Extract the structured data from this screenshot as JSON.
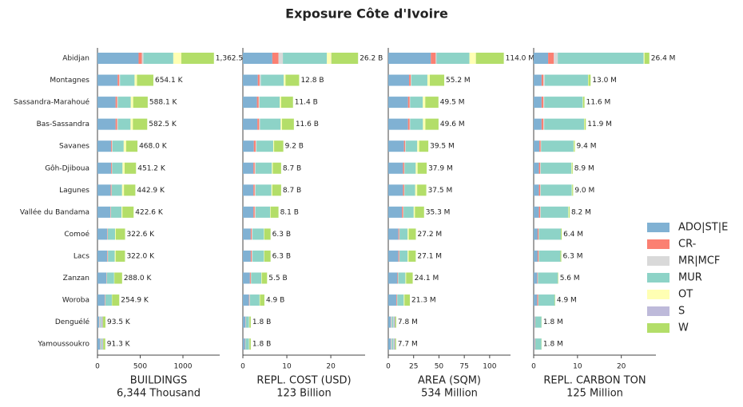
{
  "title": "Exposure Côte d'Ivoire",
  "chart_data": [
    {
      "type": "bar",
      "orientation": "horizontal",
      "categories": [
        "Abidjan",
        "Montagnes",
        "Sassandra-Marahoué",
        "Bas-Sassandra",
        "Savanes",
        "Gôh-Djiboua",
        "Lagunes",
        "Vallée du Bandama",
        "Comoé",
        "Lacs",
        "Zanzan",
        "Woroba",
        "Denguélé",
        "Yamoussoukro"
      ],
      "xlabel": "BUILDINGS",
      "subtitle": "6,344 Thousand",
      "xlim": [
        0,
        1430
      ],
      "xticks": [
        0,
        500,
        1000
      ],
      "series": [
        {
          "name": "ADO|ST|E",
          "color": "#80b1d3",
          "values": [
            481,
            236,
            212,
            212,
            160,
            160,
            155,
            151,
            113,
            113,
            104,
            85,
            20,
            30
          ]
        },
        {
          "name": "CR-",
          "color": "#fb8072",
          "values": [
            38,
            19,
            18,
            18,
            10,
            8,
            8,
            4,
            4,
            6,
            3,
            4,
            2,
            3
          ]
        },
        {
          "name": "MR|MCF",
          "color": "#d9d9d9",
          "values": [
            19,
            9,
            9,
            9,
            5,
            5,
            5,
            4,
            4,
            4,
            3,
            4,
            8,
            5
          ]
        },
        {
          "name": "MUR",
          "color": "#8dd3c7",
          "values": [
            349,
            170,
            151,
            148,
            132,
            120,
            120,
            123,
            85,
            80,
            85,
            75,
            10,
            12
          ]
        },
        {
          "name": "OT",
          "color": "#ffffb3",
          "values": [
            94,
            28,
            28,
            27,
            28,
            25,
            22,
            10,
            8,
            10,
            3,
            3,
            2,
            2
          ]
        },
        {
          "name": "S",
          "color": "#bebada",
          "values": [
            0.5,
            0,
            0,
            0,
            0,
            0,
            0,
            0,
            0,
            0,
            0,
            0,
            20,
            15
          ]
        },
        {
          "name": "W",
          "color": "#b3de69",
          "values": [
            381,
            192,
            170,
            168,
            133,
            133,
            133,
            131,
            109,
            109,
            90,
            84,
            31.5,
            24.3
          ]
        }
      ],
      "value_labels": [
        "1,362.5",
        "654.1 K",
        "588.1 K",
        "582.5 K",
        "468.0 K",
        "451.2 K",
        "442.9 K",
        "422.6 K",
        "322.6 K",
        "322.0 K",
        "288.0 K",
        "254.9 K",
        "93.5 K",
        "91.3 K"
      ]
    },
    {
      "type": "bar",
      "orientation": "horizontal",
      "xlabel": "REPL. COST (USD)",
      "subtitle": "123 Billion",
      "xlim": [
        0,
        27.8
      ],
      "xticks": [
        0,
        10,
        20
      ],
      "series": [
        {
          "color": "#80b1d3",
          "values": [
            6.7,
            3.4,
            3.2,
            3.3,
            2.5,
            2.4,
            2.4,
            2.4,
            1.8,
            1.8,
            1.6,
            1.4,
            0.6,
            0.5
          ]
        },
        {
          "color": "#fb8072",
          "values": [
            1.4,
            0.4,
            0.4,
            0.4,
            0.4,
            0.3,
            0.3,
            0.3,
            0.2,
            0.2,
            0.2,
            0.1,
            0.05,
            0.05
          ]
        },
        {
          "color": "#d9d9d9",
          "values": [
            1.0,
            0.3,
            0.2,
            0.2,
            0.2,
            0.2,
            0.2,
            0.2,
            0.2,
            0.2,
            0.1,
            0.1,
            0.05,
            0.05
          ]
        },
        {
          "color": "#8dd3c7",
          "values": [
            10.0,
            5.2,
            4.6,
            4.7,
            3.8,
            3.7,
            3.6,
            3.3,
            2.6,
            2.6,
            2.3,
            2.2,
            0.7,
            0.8
          ]
        },
        {
          "color": "#ffffb3",
          "values": [
            1.0,
            0.4,
            0.3,
            0.3,
            0.2,
            0.2,
            0.2,
            0.1,
            0.1,
            0.1,
            0.1,
            0.1,
            0.05,
            0.05
          ]
        },
        {
          "color": "#bebada",
          "values": [
            0.05,
            0,
            0,
            0,
            0,
            0,
            0,
            0,
            0,
            0,
            0,
            0,
            0.05,
            0.05
          ]
        },
        {
          "color": "#b3de69",
          "values": [
            6.05,
            3.1,
            2.7,
            2.7,
            2.1,
            1.9,
            2.0,
            1.8,
            1.4,
            1.4,
            1.2,
            1.0,
            0.3,
            0.3
          ]
        }
      ],
      "value_labels": [
        "26.2 B",
        "12.8 B",
        "11.4 B",
        "11.6 B",
        "9.2 B",
        "8.7 B",
        "8.7 B",
        "8.1 B",
        "6.3 B",
        "6.3 B",
        "5.5 B",
        "4.9 B",
        "1.8 B",
        "1.8 B"
      ]
    },
    {
      "type": "bar",
      "orientation": "horizontal",
      "xlabel": "AREA (SQM)",
      "subtitle": "534 Million",
      "xlim": [
        0,
        120.6
      ],
      "xticks": [
        0,
        25,
        50,
        75,
        100
      ],
      "series": [
        {
          "color": "#80b1d3",
          "values": [
            42,
            20.6,
            19.5,
            19.5,
            15.5,
            14.5,
            14.5,
            13.5,
            10.0,
            10.0,
            9.0,
            8.0,
            2.5,
            2.5
          ]
        },
        {
          "color": "#fb8072",
          "values": [
            4.8,
            1.6,
            1.6,
            1.6,
            1.2,
            1.2,
            1.2,
            1.2,
            0.8,
            0.8,
            0.6,
            0.6,
            0.2,
            0.2
          ]
        },
        {
          "color": "#d9d9d9",
          "values": [
            0.8,
            0.5,
            0.5,
            0.5,
            0.4,
            0.4,
            0.4,
            0.4,
            0.3,
            0.3,
            0.3,
            0.3,
            0.8,
            0.8
          ]
        },
        {
          "color": "#8dd3c7",
          "values": [
            32.5,
            15.9,
            12.5,
            12.6,
            11.5,
            11.0,
            10.5,
            10.0,
            8.0,
            8.0,
            7.0,
            6.4,
            1.5,
            1.5
          ]
        },
        {
          "color": "#ffffb3",
          "values": [
            6.3,
            2.4,
            2.4,
            2.4,
            1.9,
            1.8,
            1.9,
            1.2,
            1.1,
            1.0,
            0.7,
            0.7,
            0.2,
            0.2
          ]
        },
        {
          "color": "#bebada",
          "values": [
            0.1,
            0,
            0,
            0,
            0,
            0,
            0,
            0,
            0,
            0,
            0,
            0,
            1.5,
            1.5
          ]
        },
        {
          "color": "#b3de69",
          "values": [
            27.5,
            14.2,
            13.0,
            13.0,
            9.0,
            9.0,
            9.0,
            9.0,
            7.0,
            7.0,
            6.5,
            5.3,
            1.1,
            1.0
          ]
        }
      ],
      "value_labels": [
        "114.0 M",
        "55.2 M",
        "49.5 M",
        "49.6 M",
        "39.5 M",
        "37.9 M",
        "37.5 M",
        "35.3 M",
        "27.2 M",
        "27.1 M",
        "24.1 M",
        "21.3 M",
        "7.8 M",
        "7.7 M"
      ]
    },
    {
      "type": "bar",
      "orientation": "horizontal",
      "xlabel": "REPL. CARBON TON",
      "subtitle": "125 Million",
      "xlim": [
        0,
        27.9
      ],
      "xticks": [
        0,
        10,
        20
      ],
      "series": [
        {
          "color": "#80b1d3",
          "values": [
            3.3,
            1.8,
            1.8,
            1.8,
            1.3,
            1.2,
            1.2,
            1.2,
            0.9,
            0.9,
            0.8,
            0.8,
            0.2,
            0.2
          ]
        },
        {
          "color": "#fb8072",
          "values": [
            1.3,
            0.4,
            0.4,
            0.4,
            0.3,
            0.3,
            0.3,
            0.3,
            0.2,
            0.2,
            0.1,
            0.2,
            0.1,
            0.1
          ]
        },
        {
          "color": "#d9d9d9",
          "values": [
            0.9,
            0.3,
            0.2,
            0.2,
            0.1,
            0.1,
            0.1,
            0.1,
            0.1,
            0.1,
            0.1,
            0.1,
            0.05,
            0.05
          ]
        },
        {
          "color": "#8dd3c7",
          "values": [
            19.6,
            9.9,
            8.8,
            9.1,
            7.4,
            7.0,
            7.1,
            6.3,
            5.0,
            4.9,
            4.5,
            3.7,
            1.4,
            1.4
          ]
        },
        {
          "color": "#ffffb3",
          "values": [
            0.2,
            0.1,
            0.1,
            0.1,
            0.1,
            0.1,
            0.1,
            0.1,
            0,
            0,
            0,
            0,
            0,
            0
          ]
        },
        {
          "color": "#bebada",
          "values": [
            0,
            0,
            0,
            0,
            0,
            0,
            0,
            0,
            0,
            0,
            0,
            0,
            0,
            0
          ]
        },
        {
          "color": "#b3de69",
          "values": [
            1.1,
            0.5,
            0.3,
            0.3,
            0.2,
            0.2,
            0.2,
            0.2,
            0.2,
            0.2,
            0.1,
            0.1,
            0.05,
            0.05
          ]
        }
      ],
      "value_labels": [
        "26.4 M",
        "13.0 M",
        "11.6 M",
        "11.9 M",
        "9.4 M",
        "8.9 M",
        "9.0 M",
        "8.2 M",
        "6.4 M",
        "6.3 M",
        "5.6 M",
        "4.9 M",
        "1.8 M",
        "1.8 M"
      ]
    }
  ]
}
